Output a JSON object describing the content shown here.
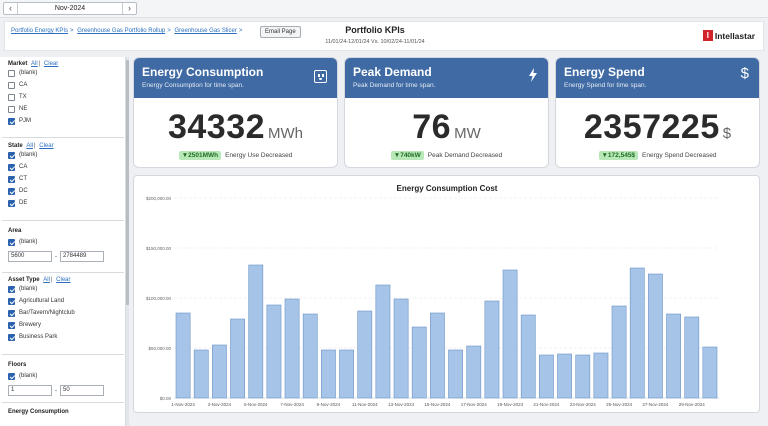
{
  "nav": {
    "month": "Nov-2024",
    "prev_icon": "chevron-left-icon",
    "next_icon": "chevron-right-icon"
  },
  "header": {
    "breadcrumbs": [
      "Portfolio Energy KPIs",
      "Greenhouse Gas Portfolio Rollup",
      "Greenhouse Gas Slicer"
    ],
    "crumb_sep": ">",
    "email_label": "Email Page",
    "title": "Portfolio KPIs",
    "subtitle": "11/01/24-12/01/24 Vs. 10/02/24-11/01/24",
    "logo_mark": "I",
    "logo_text": "Intellastar",
    "brand_red": "#d2232a"
  },
  "filters": {
    "all_label": "All",
    "clear_label": "Clear",
    "market": {
      "title": "Market",
      "items": [
        {
          "label": "(blank)",
          "checked": false
        },
        {
          "label": "CA",
          "checked": false
        },
        {
          "label": "TX",
          "checked": false
        },
        {
          "label": "NE",
          "checked": false
        },
        {
          "label": "PJM",
          "checked": true
        }
      ]
    },
    "state": {
      "title": "State",
      "items": [
        {
          "label": "(blank)",
          "checked": true
        },
        {
          "label": "CA",
          "checked": true
        },
        {
          "label": "CT",
          "checked": true
        },
        {
          "label": "DC",
          "checked": true
        },
        {
          "label": "DE",
          "checked": true
        }
      ]
    },
    "area": {
      "title": "Area",
      "blank_label": "(blank)",
      "blank_checked": true,
      "min": "5600",
      "max": "2784489"
    },
    "asset_type": {
      "title": "Asset Type",
      "items": [
        {
          "label": "(blank)",
          "checked": true
        },
        {
          "label": "Agricultural Land",
          "checked": true
        },
        {
          "label": "Bar/Tavern/Nightclub",
          "checked": true
        },
        {
          "label": "Brewery",
          "checked": true
        },
        {
          "label": "Business Park",
          "checked": true
        }
      ]
    },
    "floors": {
      "title": "Floors",
      "blank_label": "(blank)",
      "blank_checked": true,
      "min": "1",
      "max": "50"
    },
    "energy_consumption": {
      "title": "Energy Consumption"
    }
  },
  "kpis": [
    {
      "title": "Energy Consumption",
      "subtitle": "Energy Consumption for time span.",
      "icon": "outlet-icon",
      "value": "34332",
      "unit": "MWh",
      "delta": "▼2501MWh",
      "delta_text": "Energy Use Decreased"
    },
    {
      "title": "Peak Demand",
      "subtitle": "Peak Demand for time span.",
      "icon": "lightning-icon",
      "value": "76",
      "unit": "MW",
      "delta": "▼740kW",
      "delta_text": "Peak Demand Decreased"
    },
    {
      "title": "Energy Spend",
      "subtitle": "Energy Spend for time span.",
      "icon": "dollar-icon",
      "value": "2357225",
      "unit": "$",
      "delta": "▼172,545$",
      "delta_text": "Energy Spend Decreased"
    }
  ],
  "colors": {
    "kpi_band": "#3f6aa4",
    "delta_bg": "#b9e8b8",
    "delta_fg": "#1e6d22",
    "bar_fill": "#a6c4e8",
    "bar_stroke": "#6d94c6"
  },
  "chart_data": {
    "type": "bar",
    "title": "Energy Consumption Cost",
    "xlabel": "",
    "ylabel": "",
    "ylim": [
      0,
      200000
    ],
    "yticks": [
      0,
      50000,
      100000,
      150000,
      200000
    ],
    "ytick_labels": [
      "$0.00",
      "$50,000.00",
      "$100,000.00",
      "$150,000.00",
      "$200,000.00"
    ],
    "categories": [
      "1-Nov-2024",
      "2-Nov-2024",
      "3-Nov-2024",
      "4-Nov-2024",
      "5-Nov-2024",
      "6-Nov-2024",
      "7-Nov-2024",
      "8-Nov-2024",
      "9-Nov-2024",
      "10-Nov-2024",
      "11-Nov-2024",
      "12-Nov-2024",
      "13-Nov-2024",
      "14-Nov-2024",
      "15-Nov-2024",
      "16-Nov-2024",
      "17-Nov-2024",
      "18-Nov-2024",
      "19-Nov-2024",
      "20-Nov-2024",
      "21-Nov-2024",
      "22-Nov-2024",
      "23-Nov-2024",
      "24-Nov-2024",
      "25-Nov-2024",
      "26-Nov-2024",
      "27-Nov-2024",
      "28-Nov-2024",
      "29-Nov-2024",
      "30-Nov-2024"
    ],
    "xtick_labels": [
      "1-Nov-2024",
      "",
      "3-Nov-2024",
      "",
      "5-Nov-2024",
      "",
      "7-Nov-2024",
      "",
      "9-Nov-2024",
      "",
      "11-Nov-2024",
      "",
      "13-Nov-2024",
      "",
      "15-Nov-2024",
      "",
      "17-Nov-2024",
      "",
      "19-Nov-2024",
      "",
      "21-Nov-2024",
      "",
      "23-Nov-2024",
      "",
      "25-Nov-2024",
      "",
      "27-Nov-2024",
      "",
      "29-Nov-2024",
      ""
    ],
    "values": [
      85000,
      48000,
      53000,
      79000,
      133000,
      93000,
      99000,
      84000,
      48000,
      48000,
      87000,
      113000,
      99000,
      71000,
      85000,
      48000,
      52000,
      97000,
      128000,
      83000,
      43000,
      44000,
      43000,
      45000,
      92000,
      130000,
      124000,
      84000,
      81000,
      51000
    ],
    "grid": true,
    "legend": "none"
  }
}
